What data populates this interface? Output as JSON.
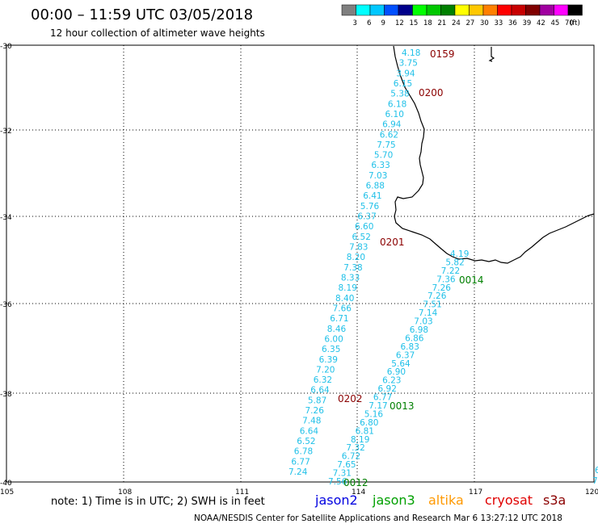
{
  "header": {
    "title": "00:00 – 11:59 UTC 03/05/2018",
    "subtitle": "12 hour collection of altimeter wave heights"
  },
  "color_scale": {
    "labels": [
      "3",
      "6",
      "9",
      "12",
      "15",
      "18",
      "21",
      "24",
      "27",
      "30",
      "33",
      "36",
      "39",
      "42",
      "45",
      "70"
    ],
    "unit": "(ft)",
    "colors": [
      "#808080",
      "#00ffff",
      "#00c8ff",
      "#0050ff",
      "#00008b",
      "#00ff00",
      "#00c800",
      "#008000",
      "#ffff00",
      "#ffc800",
      "#ff8000",
      "#ff0000",
      "#c80000",
      "#800000",
      "#a000a0",
      "#ff00ff",
      "#000000"
    ]
  },
  "axes": {
    "y_ticks": [
      "-30",
      "-32",
      "-34",
      "-36",
      "-38",
      "-40"
    ],
    "x_ticks": [
      "105",
      "108",
      "111",
      "114",
      "117",
      "120"
    ]
  },
  "tracks": {
    "jason3": {
      "color": "#20c0e8",
      "values": [
        "4.18",
        "3.75",
        "3.94",
        "6.15",
        "5.38",
        "6.18",
        "6.10",
        "6.94",
        "6.62",
        "7.75",
        "5.70",
        "6.33",
        "7.03",
        "6.88",
        "6.41",
        "5.76",
        "6.37",
        "6.60",
        "6.52",
        "7.83",
        "8.20",
        "7.38",
        "8.33",
        "8.19",
        "8.40",
        "7.66",
        "6.71",
        "8.46",
        "6.00",
        "6.35",
        "6.39",
        "7.20",
        "6.32",
        "6.64",
        "5.87",
        "7.26",
        "7.48",
        "6.64",
        "6.52",
        "6.78",
        "6.77",
        "7.24"
      ]
    },
    "jason3_b": {
      "color": "#20c0e8",
      "values": [
        "4.19",
        "5.82",
        "7.22",
        "7.36",
        "7.26",
        "7.26",
        "7.51",
        "7.14",
        "7.03",
        "6.98",
        "6.86",
        "6.83",
        "6.37",
        "5.64",
        "6.90",
        "6.23",
        "6.92",
        "6.77",
        "7.17",
        "5.16",
        "6.80",
        "6.81",
        "8.19",
        "7.32",
        "6.72",
        "7.65",
        "7.31",
        "7.56"
      ]
    },
    "time_labels": [
      {
        "text": "0159",
        "color": "#8b0000"
      },
      {
        "text": "0200",
        "color": "#8b0000"
      },
      {
        "text": "0201",
        "color": "#8b0000"
      },
      {
        "text": "0202",
        "color": "#8b0000"
      },
      {
        "text": "0014",
        "color": "#007f00"
      },
      {
        "text": "0013",
        "color": "#007f00"
      },
      {
        "text": "0012",
        "color": "#007f00"
      }
    ]
  },
  "edge_labels": [
    "6",
    "7"
  ],
  "footer": {
    "note": "note:  1) Time is in UTC;  2) SWH is in feet",
    "credit": "NOAA/NESDIS Center for Satellite Applications and Research     Mar  6 13:27:12 UTC 2018",
    "satellites": [
      {
        "name": "jason2",
        "color": "#0000e0"
      },
      {
        "name": "jason3",
        "color": "#00a000"
      },
      {
        "name": "altika",
        "color": "#ff9900"
      },
      {
        "name": "cryosat",
        "color": "#e00000"
      },
      {
        "name": "s3a",
        "color": "#8b0000"
      }
    ]
  }
}
